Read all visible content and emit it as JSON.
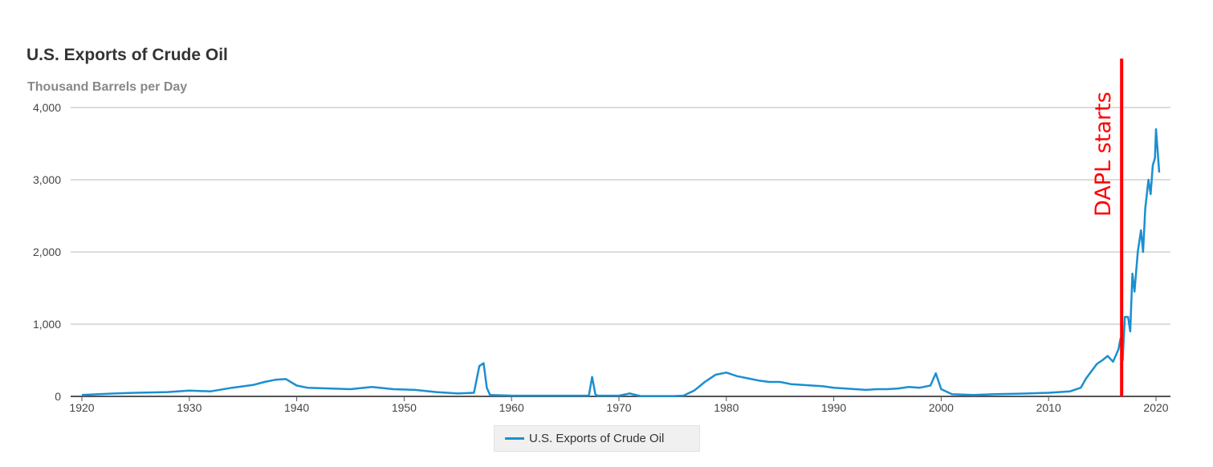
{
  "chart_data": {
    "type": "line",
    "title": "U.S. Exports of Crude Oil",
    "ylabel": "Thousand Barrels per Day",
    "xlim": [
      1919.5,
      2021.3
    ],
    "ylim": [
      0,
      4000
    ],
    "x_ticks": [
      "1920",
      "1930",
      "1940",
      "1950",
      "1960",
      "1970",
      "1980",
      "1990",
      "2000",
      "2010",
      "2020"
    ],
    "y_ticks": [
      "0",
      "1,000",
      "2,000",
      "3,000",
      "4,000"
    ],
    "grid": true,
    "legend_position": "bottom",
    "series": [
      {
        "name": "U.S. Exports of Crude Oil",
        "color": "#1a8fd1",
        "x": [
          1920,
          1923,
          1925,
          1928,
          1930,
          1932,
          1934,
          1936,
          1937,
          1938,
          1939,
          1940,
          1941,
          1943,
          1945,
          1947,
          1949,
          1951,
          1953,
          1955,
          1956.5,
          1957.0,
          1957.4,
          1957.7,
          1958,
          1960,
          1965,
          1967.2,
          1967.5,
          1967.8,
          1968,
          1970,
          1971,
          1972,
          1975,
          1976,
          1977,
          1978,
          1979,
          1980,
          1981,
          1982,
          1983,
          1984,
          1985,
          1986,
          1987,
          1988,
          1989,
          1990,
          1991,
          1992,
          1993,
          1994,
          1995,
          1996,
          1997,
          1998,
          1999,
          1999.5,
          2000,
          2001,
          2003,
          2005,
          2008,
          2010,
          2012,
          2013,
          2013.5,
          2014,
          2014.5,
          2015,
          2015.5,
          2016,
          2016.5,
          2016.7,
          2016.9,
          2017.1,
          2017.4,
          2017.6,
          2017.8,
          2018,
          2018.3,
          2018.6,
          2018.8,
          2019,
          2019.3,
          2019.5,
          2019.7,
          2019.9,
          2020.0,
          2020.2,
          2020.3
        ],
        "y": [
          20,
          40,
          50,
          60,
          80,
          70,
          120,
          160,
          200,
          230,
          240,
          150,
          120,
          110,
          100,
          130,
          100,
          90,
          60,
          40,
          50,
          420,
          460,
          120,
          20,
          10,
          10,
          10,
          270,
          30,
          10,
          10,
          40,
          5,
          5,
          10,
          80,
          200,
          300,
          330,
          280,
          250,
          220,
          200,
          200,
          170,
          160,
          150,
          140,
          120,
          110,
          100,
          90,
          100,
          100,
          110,
          130,
          120,
          150,
          320,
          100,
          30,
          20,
          30,
          40,
          50,
          70,
          120,
          250,
          350,
          450,
          500,
          560,
          480,
          650,
          800,
          500,
          1100,
          1100,
          900,
          1700,
          1450,
          2000,
          2300,
          2000,
          2600,
          3000,
          2800,
          3200,
          3300,
          3700,
          3300,
          3100
        ]
      }
    ],
    "annotations": [
      {
        "text": "DAPL starts",
        "x": 2016.8,
        "color": "#ff0000"
      }
    ]
  }
}
